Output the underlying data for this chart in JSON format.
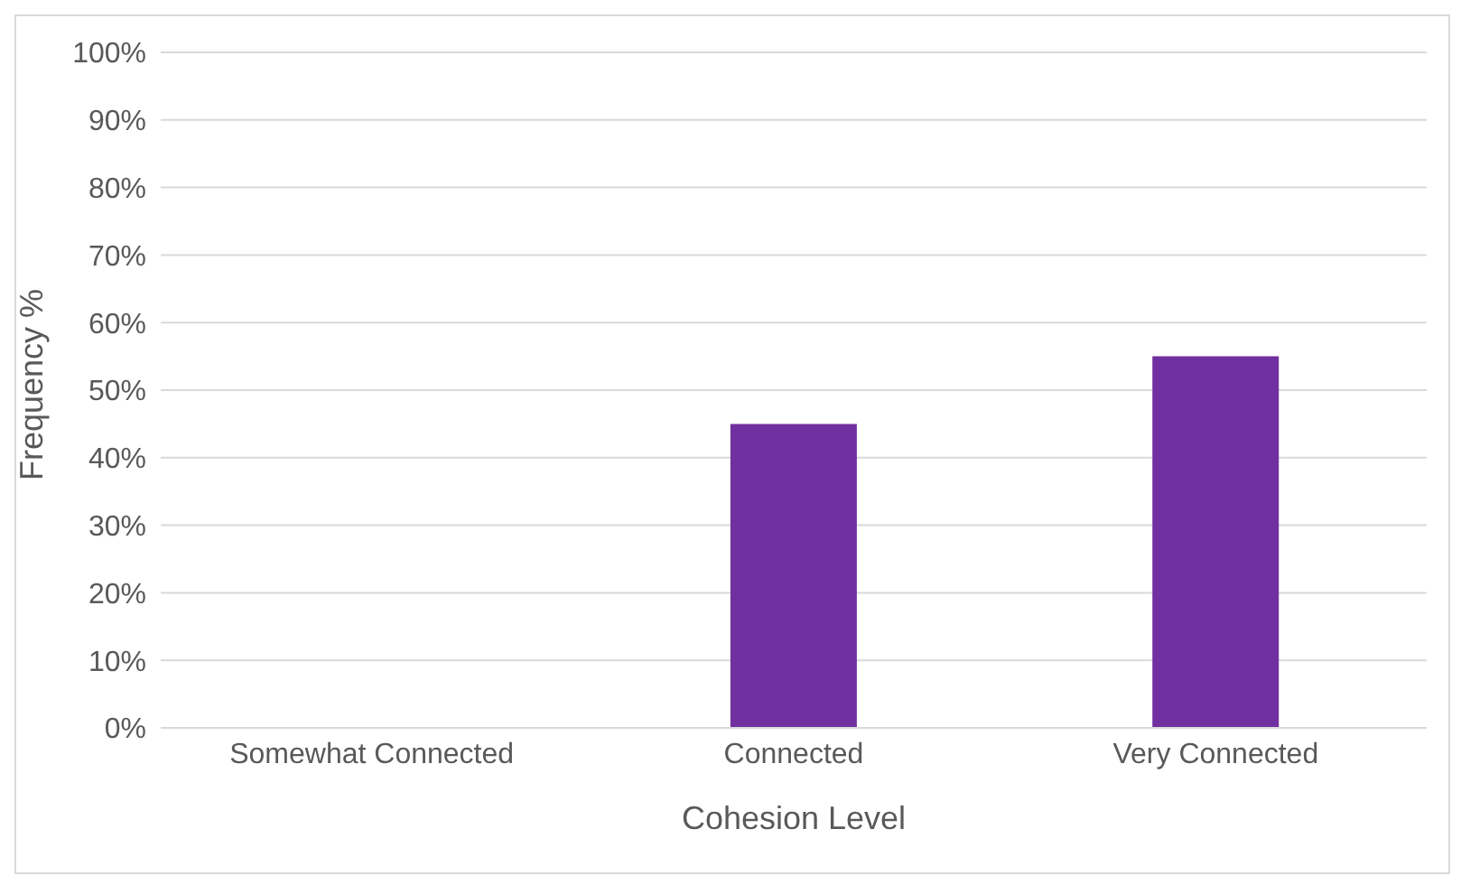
{
  "chart_data": {
    "type": "bar",
    "xlabel": "Cohesion Level",
    "ylabel": "Frequency %",
    "categories": [
      "Somewhat Connected",
      "Connected",
      "Very Connected"
    ],
    "values": [
      0,
      45,
      55
    ],
    "color": "#7030a0",
    "ylim": [
      0,
      100
    ],
    "yticks": [
      {
        "value": 0,
        "label": "0%"
      },
      {
        "value": 10,
        "label": "10%"
      },
      {
        "value": 20,
        "label": "20%"
      },
      {
        "value": 30,
        "label": "30%"
      },
      {
        "value": 40,
        "label": "40%"
      },
      {
        "value": 50,
        "label": "50%"
      },
      {
        "value": 60,
        "label": "60%"
      },
      {
        "value": 70,
        "label": "70%"
      },
      {
        "value": 80,
        "label": "80%"
      },
      {
        "value": 90,
        "label": "90%"
      },
      {
        "value": 100,
        "label": "100%"
      }
    ],
    "grid": "y",
    "legend": false
  }
}
